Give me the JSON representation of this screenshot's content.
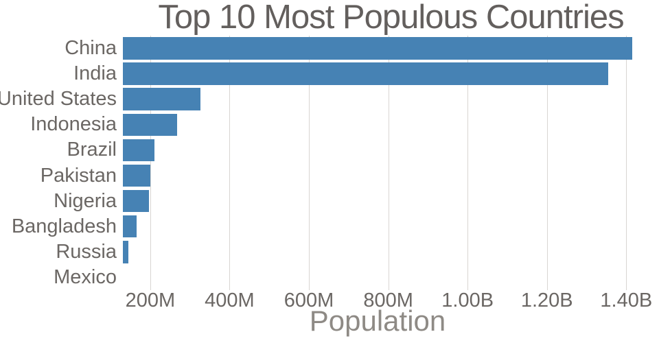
{
  "colors": {
    "bar": "#4682B4",
    "title_text": "#635f5d",
    "axis_text": "#6b6764",
    "axis_title_text": "#8e8a85",
    "gridline": "#d8d5d2",
    "background": "#ffffff"
  },
  "chart_data": {
    "type": "bar",
    "orientation": "horizontal",
    "title": "Top 10 Most Populous Countries",
    "xlabel": "Population",
    "ylabel": "",
    "categories": [
      "China",
      "India",
      "United States",
      "Indonesia",
      "Brazil",
      "Pakistan",
      "Nigeria",
      "Bangladesh",
      "Russia",
      "Mexico"
    ],
    "values_millions": [
      1415,
      1354,
      327,
      267,
      211,
      201,
      196,
      166,
      144,
      131
    ],
    "x_domain_millions": [
      131,
      1415
    ],
    "x_ticks": [
      {
        "value": 200,
        "label": "200M"
      },
      {
        "value": 400,
        "label": "400M"
      },
      {
        "value": 600,
        "label": "600M"
      },
      {
        "value": 800,
        "label": "800M"
      },
      {
        "value": 1000,
        "label": "1.00B"
      },
      {
        "value": 1200,
        "label": "1.20B"
      },
      {
        "value": 1400,
        "label": "1.40B"
      }
    ],
    "grid": true,
    "legend": false
  }
}
